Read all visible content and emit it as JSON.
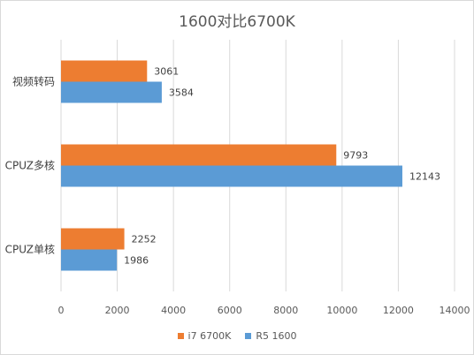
{
  "chart_data": {
    "type": "bar",
    "orientation": "horizontal",
    "title": "1600对比6700K",
    "categories": [
      "视频转码",
      "CPUZ多核",
      "CPUZ单核"
    ],
    "series": [
      {
        "name": "i7 6700K",
        "color": "#ED7D31",
        "values": [
          3061,
          9793,
          2252
        ]
      },
      {
        "name": "R5 1600",
        "color": "#5B9BD5",
        "values": [
          3584,
          12143,
          1986
        ]
      }
    ],
    "xlim": [
      0,
      14000
    ],
    "xticks": [
      0,
      2000,
      4000,
      6000,
      8000,
      10000,
      12000,
      14000
    ],
    "grid": true,
    "legend_position": "bottom"
  }
}
